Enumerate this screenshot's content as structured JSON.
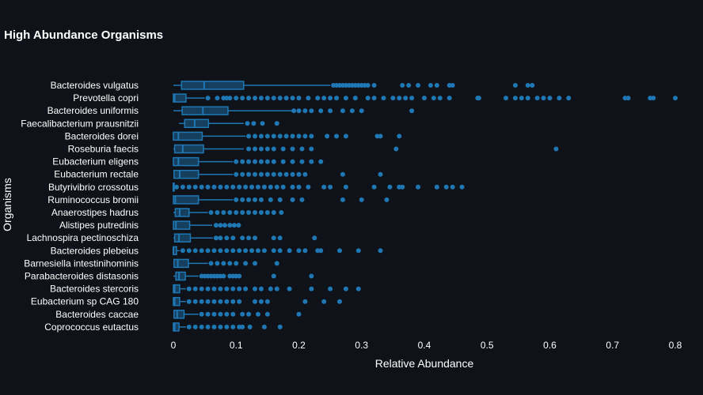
{
  "chart_data": {
    "type": "box",
    "title": "High Abundance Organisms",
    "xlabel": "Relative Abundance",
    "ylabel": "Organisms",
    "xlim": [
      -0.003,
      0.81
    ],
    "xticks": [
      0,
      0.1,
      0.2,
      0.3,
      0.4,
      0.5,
      0.6,
      0.7,
      0.8
    ],
    "xtick_labels": [
      "0",
      "0.1",
      "0.2",
      "0.3",
      "0.4",
      "0.5",
      "0.6",
      "0.7",
      "0.8"
    ],
    "grid": false,
    "legend": "none",
    "color": "#1f77b4",
    "series": [
      {
        "name": "Bacteroides vulgatus",
        "min": 0.0,
        "q1": 0.013,
        "median": 0.049,
        "q3": 0.112,
        "max": 0.25,
        "outliers": [
          0.255,
          0.26,
          0.265,
          0.27,
          0.275,
          0.28,
          0.285,
          0.29,
          0.295,
          0.3,
          0.305,
          0.31,
          0.32,
          0.365,
          0.375,
          0.39,
          0.41,
          0.42,
          0.44,
          0.445,
          0.545,
          0.565,
          0.572
        ]
      },
      {
        "name": "Prevotella copri",
        "min": 0.0,
        "q1": 0.0,
        "median": 0.002,
        "q3": 0.02,
        "max": 0.05,
        "outliers": [
          0.055,
          0.07,
          0.08,
          0.085,
          0.09,
          0.1,
          0.11,
          0.12,
          0.13,
          0.14,
          0.15,
          0.16,
          0.17,
          0.18,
          0.19,
          0.2,
          0.215,
          0.23,
          0.24,
          0.25,
          0.26,
          0.275,
          0.29,
          0.31,
          0.32,
          0.335,
          0.35,
          0.36,
          0.37,
          0.38,
          0.4,
          0.415,
          0.425,
          0.44,
          0.485,
          0.487,
          0.53,
          0.545,
          0.555,
          0.565,
          0.58,
          0.59,
          0.6,
          0.615,
          0.63,
          0.72,
          0.725,
          0.76,
          0.765,
          0.8
        ]
      },
      {
        "name": "Bacteroides uniformis",
        "min": 0.0,
        "q1": 0.014,
        "median": 0.047,
        "q3": 0.087,
        "max": 0.19,
        "outliers": [
          0.192,
          0.2,
          0.21,
          0.22,
          0.235,
          0.25,
          0.27,
          0.285,
          0.3,
          0.38
        ]
      },
      {
        "name": "Faecalibacterium prausnitzii",
        "min": 0.009,
        "q1": 0.018,
        "median": 0.034,
        "q3": 0.056,
        "max": 0.112,
        "outliers": [
          0.118,
          0.128,
          0.142,
          0.165
        ]
      },
      {
        "name": "Bacteroides dorei",
        "min": 0.0,
        "q1": 0.0,
        "median": 0.008,
        "q3": 0.046,
        "max": 0.115,
        "outliers": [
          0.12,
          0.13,
          0.14,
          0.15,
          0.16,
          0.17,
          0.18,
          0.19,
          0.2,
          0.21,
          0.22,
          0.245,
          0.26,
          0.275,
          0.325,
          0.33,
          0.36
        ]
      },
      {
        "name": "Roseburia faecis",
        "min": 0.0,
        "q1": 0.002,
        "median": 0.015,
        "q3": 0.048,
        "max": 0.112,
        "outliers": [
          0.12,
          0.13,
          0.14,
          0.15,
          0.16,
          0.175,
          0.19,
          0.205,
          0.22,
          0.355,
          0.61
        ]
      },
      {
        "name": "Eubacterium eligens",
        "min": 0.0,
        "q1": 0.0,
        "median": 0.008,
        "q3": 0.04,
        "max": 0.095,
        "outliers": [
          0.1,
          0.11,
          0.12,
          0.13,
          0.14,
          0.15,
          0.16,
          0.175,
          0.19,
          0.205,
          0.22,
          0.235
        ]
      },
      {
        "name": "Eubacterium rectale",
        "min": 0.0,
        "q1": 0.001,
        "median": 0.01,
        "q3": 0.04,
        "max": 0.095,
        "outliers": [
          0.1,
          0.11,
          0.12,
          0.13,
          0.14,
          0.15,
          0.16,
          0.17,
          0.18,
          0.19,
          0.2,
          0.21,
          0.27,
          0.33
        ]
      },
      {
        "name": "Butyrivibrio crossotus",
        "min": 0.0,
        "q1": 0.0,
        "median": 0.0,
        "q3": 0.0,
        "max": 0.0,
        "outliers": [
          0.005,
          0.015,
          0.025,
          0.035,
          0.045,
          0.055,
          0.065,
          0.075,
          0.085,
          0.095,
          0.105,
          0.115,
          0.125,
          0.135,
          0.145,
          0.155,
          0.165,
          0.175,
          0.19,
          0.2,
          0.215,
          0.24,
          0.25,
          0.275,
          0.32,
          0.345,
          0.36,
          0.365,
          0.39,
          0.42,
          0.435,
          0.445,
          0.46
        ]
      },
      {
        "name": "Ruminococcus bromii",
        "min": 0.0,
        "q1": 0.0,
        "median": 0.003,
        "q3": 0.04,
        "max": 0.095,
        "outliers": [
          0.1,
          0.11,
          0.12,
          0.13,
          0.14,
          0.155,
          0.17,
          0.19,
          0.205,
          0.27,
          0.3,
          0.34
        ]
      },
      {
        "name": "Anaerostipes hadrus",
        "min": 0.0,
        "q1": 0.003,
        "median": 0.01,
        "q3": 0.025,
        "max": 0.055,
        "outliers": [
          0.06,
          0.07,
          0.08,
          0.09,
          0.1,
          0.11,
          0.12,
          0.13,
          0.14,
          0.15,
          0.16,
          0.172
        ]
      },
      {
        "name": "Alistipes putredinis",
        "min": 0.0,
        "q1": 0.0,
        "median": 0.004,
        "q3": 0.026,
        "max": 0.062,
        "outliers": [
          0.068,
          0.075,
          0.082,
          0.09,
          0.097,
          0.104
        ]
      },
      {
        "name": "Lachnospira pectinoschiza",
        "min": 0.0,
        "q1": 0.002,
        "median": 0.009,
        "q3": 0.027,
        "max": 0.063,
        "outliers": [
          0.068,
          0.075,
          0.085,
          0.095,
          0.11,
          0.12,
          0.13,
          0.16,
          0.17,
          0.225
        ]
      },
      {
        "name": "Bacteroides plebeius",
        "min": 0.0,
        "q1": 0.0,
        "median": 0.0,
        "q3": 0.005,
        "max": 0.01,
        "outliers": [
          0.015,
          0.025,
          0.035,
          0.045,
          0.055,
          0.065,
          0.075,
          0.085,
          0.095,
          0.105,
          0.115,
          0.125,
          0.135,
          0.145,
          0.16,
          0.17,
          0.185,
          0.2,
          0.21,
          0.23,
          0.235,
          0.265,
          0.295,
          0.33
        ]
      },
      {
        "name": "Barnesiella intestinihominis",
        "min": 0.0,
        "q1": 0.001,
        "median": 0.007,
        "q3": 0.024,
        "max": 0.055,
        "outliers": [
          0.06,
          0.07,
          0.08,
          0.09,
          0.1,
          0.115,
          0.13,
          0.165
        ]
      },
      {
        "name": "Parabacteroides distasonis",
        "min": 0.0,
        "q1": 0.004,
        "median": 0.009,
        "q3": 0.019,
        "max": 0.04,
        "outliers": [
          0.045,
          0.05,
          0.055,
          0.06,
          0.065,
          0.07,
          0.075,
          0.08,
          0.09,
          0.095,
          0.1,
          0.105,
          0.16,
          0.22
        ]
      },
      {
        "name": "Bacteroides stercoris",
        "min": 0.0,
        "q1": 0.0,
        "median": 0.002,
        "q3": 0.01,
        "max": 0.02,
        "outliers": [
          0.025,
          0.035,
          0.045,
          0.055,
          0.065,
          0.075,
          0.085,
          0.095,
          0.105,
          0.115,
          0.13,
          0.14,
          0.155,
          0.165,
          0.185,
          0.22,
          0.25,
          0.275,
          0.295
        ]
      },
      {
        "name": "Eubacterium sp CAG 180",
        "min": 0.0,
        "q1": 0.0,
        "median": 0.002,
        "q3": 0.01,
        "max": 0.02,
        "outliers": [
          0.025,
          0.035,
          0.045,
          0.055,
          0.065,
          0.075,
          0.085,
          0.095,
          0.105,
          0.13,
          0.14,
          0.15,
          0.21,
          0.24,
          0.265
        ]
      },
      {
        "name": "Bacteroides caccae",
        "min": 0.0,
        "q1": 0.001,
        "median": 0.006,
        "q3": 0.017,
        "max": 0.04,
        "outliers": [
          0.045,
          0.055,
          0.065,
          0.075,
          0.085,
          0.095,
          0.11,
          0.12,
          0.135,
          0.15,
          0.2
        ]
      },
      {
        "name": "Coprococcus eutactus",
        "min": 0.0,
        "q1": 0.0,
        "median": 0.002,
        "q3": 0.009,
        "max": 0.02,
        "outliers": [
          0.025,
          0.035,
          0.045,
          0.055,
          0.065,
          0.075,
          0.085,
          0.095,
          0.105,
          0.11,
          0.122,
          0.145,
          0.17
        ]
      }
    ]
  }
}
